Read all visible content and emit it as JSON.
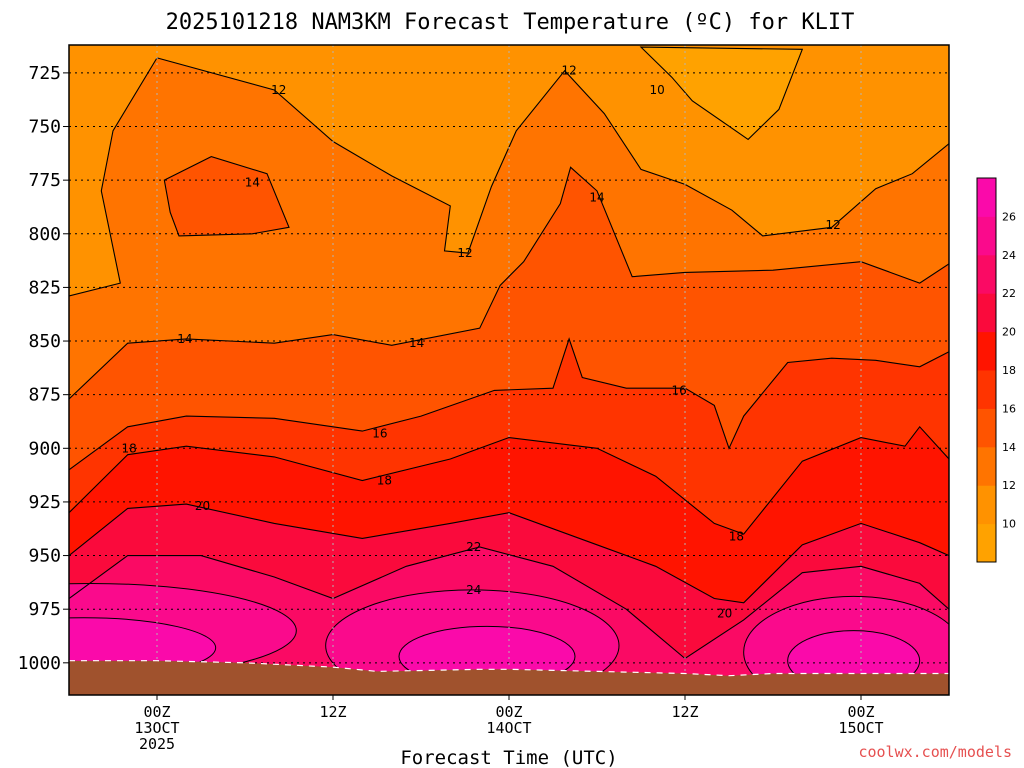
{
  "title": "2025101218 NAM3KM Forecast Temperature (ºC) for KLIT",
  "credit": "coolwx.com/models",
  "colors": {
    "band_8_10": "#ffa200",
    "band_10_12": "#ff9200",
    "band_12_14": "#ff7400",
    "band_14_16": "#ff5400",
    "band_16_18": "#ff3400",
    "band_18_20": "#ff1400",
    "band_20_22": "#fa0a3c",
    "band_22_24": "#fa0a64",
    "band_24_26": "#fa0a8c",
    "band_26_28": "#fa0aaa",
    "ground": "#a0522d",
    "contour": "#000000"
  },
  "chart_data": {
    "type": "heatmap",
    "title": "2025101218 NAM3KM Forecast Temperature (ºC) for KLIT",
    "xlabel": "Forecast Time (UTC)",
    "ylabel": "",
    "x_ticks": [
      {
        "hour": 6,
        "lines": [
          "00Z",
          "13OCT",
          "2025"
        ]
      },
      {
        "hour": 18,
        "lines": [
          "12Z"
        ]
      },
      {
        "hour": 30,
        "lines": [
          "00Z",
          "14OCT"
        ]
      },
      {
        "hour": 42,
        "lines": [
          "12Z"
        ]
      },
      {
        "hour": 54,
        "lines": [
          "00Z",
          "15OCT"
        ]
      }
    ],
    "xlim_hours": [
      0,
      60
    ],
    "y_ticks": [
      725,
      750,
      775,
      800,
      825,
      850,
      875,
      900,
      925,
      950,
      975,
      1000
    ],
    "ylim_hpa": [
      1015,
      712
    ],
    "y_scale": "pressure (hPa), decreasing upward",
    "grid": true,
    "colorbar": {
      "position": "right",
      "levels": [
        8,
        10,
        12,
        14,
        16,
        18,
        20,
        22,
        24,
        26,
        28
      ],
      "labels": [
        10,
        12,
        14,
        16,
        18,
        20,
        22,
        24,
        26
      ]
    },
    "contour_labels": [
      {
        "value": 12,
        "hour": 14.3,
        "hpa": 733
      },
      {
        "value": 12,
        "hour": 34.1,
        "hpa": 724
      },
      {
        "value": 10,
        "hour": 40.1,
        "hpa": 733
      },
      {
        "value": 14,
        "hour": 12.5,
        "hpa": 776
      },
      {
        "value": 14,
        "hour": 36.0,
        "hpa": 783
      },
      {
        "value": 12,
        "hour": 27.0,
        "hpa": 809
      },
      {
        "value": 12,
        "hour": 52.1,
        "hpa": 796
      },
      {
        "value": 14,
        "hour": 7.9,
        "hpa": 849
      },
      {
        "value": 14,
        "hour": 23.7,
        "hpa": 851
      },
      {
        "value": 16,
        "hour": 21.2,
        "hpa": 893
      },
      {
        "value": 16,
        "hour": 41.6,
        "hpa": 873
      },
      {
        "value": 18,
        "hour": 4.1,
        "hpa": 900
      },
      {
        "value": 18,
        "hour": 21.5,
        "hpa": 915
      },
      {
        "value": 18,
        "hour": 45.5,
        "hpa": 941
      },
      {
        "value": 20,
        "hour": 9.1,
        "hpa": 927
      },
      {
        "value": 20,
        "hour": 44.7,
        "hpa": 977
      },
      {
        "value": 22,
        "hour": 27.6,
        "hpa": 946
      },
      {
        "value": 24,
        "hour": 27.6,
        "hpa": 966
      }
    ],
    "surface_pressure_hpa": [
      {
        "hour": 0,
        "hpa": 999
      },
      {
        "hour": 6,
        "hpa": 999
      },
      {
        "hour": 12,
        "hpa": 1000
      },
      {
        "hour": 18,
        "hpa": 1002
      },
      {
        "hour": 21,
        "hpa": 1004
      },
      {
        "hour": 28,
        "hpa": 1003
      },
      {
        "hour": 30,
        "hpa": 1003
      },
      {
        "hour": 36,
        "hpa": 1004
      },
      {
        "hour": 42,
        "hpa": 1005
      },
      {
        "hour": 45,
        "hpa": 1006
      },
      {
        "hour": 48,
        "hpa": 1005
      },
      {
        "hour": 54,
        "hpa": 1005
      },
      {
        "hour": 60,
        "hpa": 1005
      }
    ],
    "isotherms_hpa": {
      "12": [
        {
          "hour": 0,
          "hpa": 829
        },
        {
          "hour": 3.5,
          "hpa": 823
        },
        {
          "hour": 2.2,
          "hpa": 780
        },
        {
          "hour": 3,
          "hpa": 752
        },
        {
          "hour": 6,
          "hpa": 718
        },
        {
          "hour": 14,
          "hpa": 733
        },
        {
          "hour": 18,
          "hpa": 757
        },
        {
          "hour": 22,
          "hpa": 773
        },
        {
          "hour": 26,
          "hpa": 787
        },
        {
          "hour": 25.6,
          "hpa": 808
        },
        {
          "hour": 27.2,
          "hpa": 809
        },
        {
          "hour": 28.8,
          "hpa": 778
        },
        {
          "hour": 30.5,
          "hpa": 752
        },
        {
          "hour": 33.8,
          "hpa": 724
        },
        {
          "hour": 36.5,
          "hpa": 744
        },
        {
          "hour": 39,
          "hpa": 770
        },
        {
          "hour": 42,
          "hpa": 777
        },
        {
          "hour": 45.2,
          "hpa": 789
        },
        {
          "hour": 47.3,
          "hpa": 801
        },
        {
          "hour": 52,
          "hpa": 797
        },
        {
          "hour": 55,
          "hpa": 779
        },
        {
          "hour": 57.5,
          "hpa": 772
        },
        {
          "hour": 60,
          "hpa": 758
        }
      ],
      "10": [
        {
          "hour": 39,
          "hpa": 713
        },
        {
          "hour": 41.1,
          "hpa": 727
        },
        {
          "hour": 42.5,
          "hpa": 738
        },
        {
          "hour": 46.3,
          "hpa": 756
        },
        {
          "hour": 48.4,
          "hpa": 742
        },
        {
          "hour": 50,
          "hpa": 714
        }
      ],
      "14u": [
        {
          "hour": 0,
          "hpa": 877
        },
        {
          "hour": 4,
          "hpa": 851
        },
        {
          "hour": 8,
          "hpa": 849
        },
        {
          "hour": 14,
          "hpa": 851
        },
        {
          "hour": 18,
          "hpa": 847
        },
        {
          "hour": 22,
          "hpa": 852
        },
        {
          "hour": 28,
          "hpa": 844
        },
        {
          "hour": 29.4,
          "hpa": 824
        },
        {
          "hour": 31,
          "hpa": 813
        },
        {
          "hour": 33.5,
          "hpa": 786
        },
        {
          "hour": 34.2,
          "hpa": 769
        },
        {
          "hour": 36,
          "hpa": 780
        },
        {
          "hour": 38.4,
          "hpa": 820
        },
        {
          "hour": 42,
          "hpa": 818
        },
        {
          "hour": 48,
          "hpa": 817
        },
        {
          "hour": 54,
          "hpa": 813
        },
        {
          "hour": 58,
          "hpa": 823
        },
        {
          "hour": 60,
          "hpa": 814
        }
      ],
      "14i": [
        {
          "hour": 6.5,
          "hpa": 775
        },
        {
          "hour": 9.7,
          "hpa": 764
        },
        {
          "hour": 13.5,
          "hpa": 772
        },
        {
          "hour": 15,
          "hpa": 797
        },
        {
          "hour": 12.5,
          "hpa": 800
        },
        {
          "hour": 7.5,
          "hpa": 801
        },
        {
          "hour": 6.9,
          "hpa": 790
        }
      ],
      "16": [
        {
          "hour": 0,
          "hpa": 910
        },
        {
          "hour": 4,
          "hpa": 890
        },
        {
          "hour": 8,
          "hpa": 885
        },
        {
          "hour": 14,
          "hpa": 886
        },
        {
          "hour": 20,
          "hpa": 892
        },
        {
          "hour": 24,
          "hpa": 885
        },
        {
          "hour": 29,
          "hpa": 873
        },
        {
          "hour": 33,
          "hpa": 872
        },
        {
          "hour": 34.1,
          "hpa": 849
        },
        {
          "hour": 35,
          "hpa": 867
        },
        {
          "hour": 38,
          "hpa": 872
        },
        {
          "hour": 42,
          "hpa": 872
        },
        {
          "hour": 44,
          "hpa": 880
        },
        {
          "hour": 45,
          "hpa": 900
        },
        {
          "hour": 46,
          "hpa": 885
        },
        {
          "hour": 49,
          "hpa": 860
        },
        {
          "hour": 52,
          "hpa": 858
        },
        {
          "hour": 55,
          "hpa": 859
        },
        {
          "hour": 58,
          "hpa": 862
        },
        {
          "hour": 60,
          "hpa": 855
        }
      ],
      "18": [
        {
          "hour": 0,
          "hpa": 930
        },
        {
          "hour": 4,
          "hpa": 903
        },
        {
          "hour": 8,
          "hpa": 899
        },
        {
          "hour": 14,
          "hpa": 904
        },
        {
          "hour": 20,
          "hpa": 915
        },
        {
          "hour": 26,
          "hpa": 905
        },
        {
          "hour": 30,
          "hpa": 895
        },
        {
          "hour": 36,
          "hpa": 900
        },
        {
          "hour": 40,
          "hpa": 913
        },
        {
          "hour": 44,
          "hpa": 935
        },
        {
          "hour": 46,
          "hpa": 940
        },
        {
          "hour": 50,
          "hpa": 906
        },
        {
          "hour": 54,
          "hpa": 895
        },
        {
          "hour": 57,
          "hpa": 899
        },
        {
          "hour": 58,
          "hpa": 890
        },
        {
          "hour": 60,
          "hpa": 905
        }
      ],
      "20": [
        {
          "hour": 0,
          "hpa": 950
        },
        {
          "hour": 4,
          "hpa": 928
        },
        {
          "hour": 8,
          "hpa": 926
        },
        {
          "hour": 14,
          "hpa": 935
        },
        {
          "hour": 20,
          "hpa": 942
        },
        {
          "hour": 26,
          "hpa": 935
        },
        {
          "hour": 30,
          "hpa": 930
        },
        {
          "hour": 36,
          "hpa": 945
        },
        {
          "hour": 40,
          "hpa": 955
        },
        {
          "hour": 44,
          "hpa": 970
        },
        {
          "hour": 46,
          "hpa": 972
        },
        {
          "hour": 50,
          "hpa": 945
        },
        {
          "hour": 54,
          "hpa": 935
        },
        {
          "hour": 58,
          "hpa": 944
        },
        {
          "hour": 60,
          "hpa": 950
        }
      ],
      "22": [
        {
          "hour": 0,
          "hpa": 970
        },
        {
          "hour": 4,
          "hpa": 950
        },
        {
          "hour": 9,
          "hpa": 950
        },
        {
          "hour": 14,
          "hpa": 960
        },
        {
          "hour": 18,
          "hpa": 970
        },
        {
          "hour": 23,
          "hpa": 955
        },
        {
          "hour": 28,
          "hpa": 946
        },
        {
          "hour": 33,
          "hpa": 955
        },
        {
          "hour": 38,
          "hpa": 975
        },
        {
          "hour": 42,
          "hpa": 998
        },
        {
          "hour": 46,
          "hpa": 980
        },
        {
          "hour": 50,
          "hpa": 958
        },
        {
          "hour": 54,
          "hpa": 955
        },
        {
          "hour": 58,
          "hpa": 963
        },
        {
          "hour": 60,
          "hpa": 975
        }
      ]
    }
  }
}
